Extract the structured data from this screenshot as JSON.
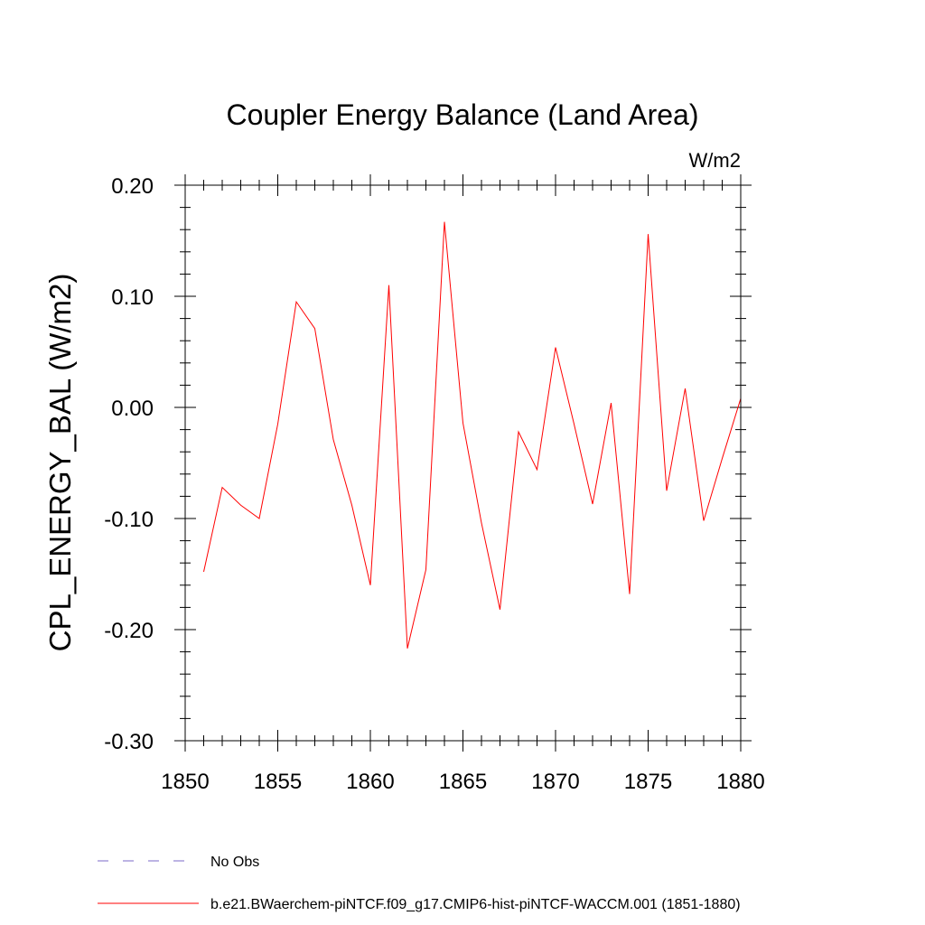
{
  "chart_data": {
    "type": "line",
    "title": "Coupler Energy Balance (Land Area)",
    "units_label": "W/m2",
    "ylabel": "CPL_ENERGY_BAL  (W/m2)",
    "xlabel": "",
    "xlim": [
      1850,
      1880
    ],
    "ylim": [
      -0.3,
      0.2
    ],
    "x_ticks": [
      1850,
      1855,
      1860,
      1865,
      1870,
      1875,
      1880
    ],
    "x_tick_labels": [
      "1850",
      "1855",
      "1860",
      "1865",
      "1870",
      "1875",
      "1880"
    ],
    "y_ticks": [
      -0.3,
      -0.2,
      -0.1,
      0.0,
      0.1,
      0.2
    ],
    "y_tick_labels": [
      "-0.30",
      "-0.20",
      "-0.10",
      "0.00",
      "0.10",
      "0.20"
    ],
    "grid": false,
    "legend_position": "bottom",
    "series": [
      {
        "name": "b.e21.BWaerchem-piNTCF.f09_g17.CMIP6-hist-piNTCF-WACCM.001 (1851-1880)",
        "color": "#ff0000",
        "style": "solid",
        "x": [
          1851,
          1852,
          1853,
          1854,
          1855,
          1856,
          1857,
          1858,
          1859,
          1860,
          1861,
          1862,
          1863,
          1864,
          1865,
          1866,
          1867,
          1868,
          1869,
          1870,
          1871,
          1872,
          1873,
          1874,
          1875,
          1876,
          1877,
          1878,
          1879,
          1880
        ],
        "values": [
          -0.148,
          -0.072,
          -0.088,
          -0.1,
          -0.015,
          0.095,
          0.071,
          -0.029,
          -0.088,
          -0.16,
          0.11,
          -0.217,
          -0.146,
          0.167,
          -0.014,
          -0.104,
          -0.182,
          -0.022,
          -0.056,
          0.054,
          -0.015,
          -0.087,
          0.004,
          -0.168,
          0.156,
          -0.075,
          0.017,
          -0.102,
          -0.046,
          0.008
        ]
      }
    ],
    "legend": [
      {
        "label": "No Obs",
        "color": "#7b68c8",
        "style": "dashed"
      },
      {
        "label": "b.e21.BWaerchem-piNTCF.f09_g17.CMIP6-hist-piNTCF-WACCM.001 (1851-1880)",
        "color": "#ff0000",
        "style": "solid"
      }
    ]
  }
}
